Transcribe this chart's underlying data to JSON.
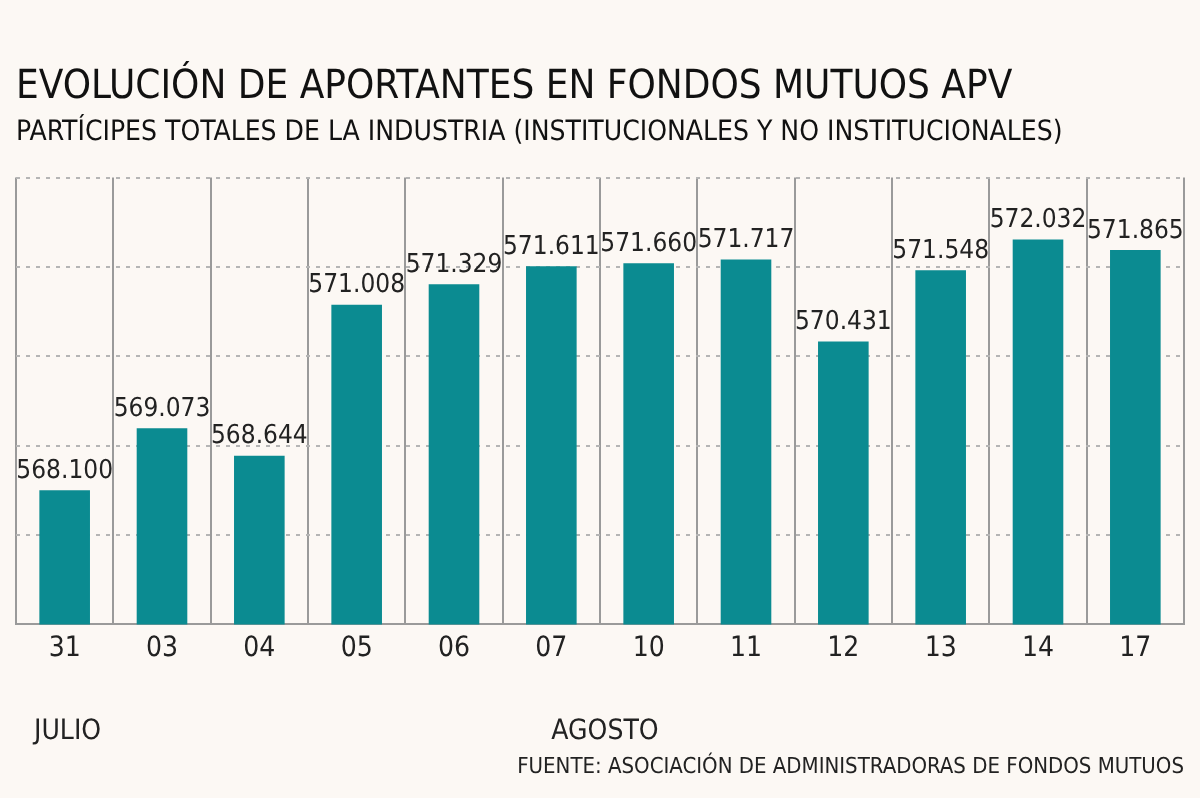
{
  "chart_data": {
    "type": "bar",
    "title": "EVOLUCIÓN DE APORTANTES EN FONDOS MUTUOS APV",
    "subtitle": "PARTÍCIPES TOTALES DE LA INDUSTRIA (INSTITUCIONALES Y NO INSTITUCIONALES)",
    "categories": [
      "31",
      "03",
      "04",
      "05",
      "06",
      "07",
      "10",
      "11",
      "12",
      "13",
      "14",
      "17"
    ],
    "values": [
      568100,
      569073,
      568644,
      571008,
      571329,
      571611,
      571660,
      571717,
      570431,
      571548,
      572032,
      571865
    ],
    "value_labels": [
      "568.100",
      "569.073",
      "568.644",
      "571.008",
      "571.329",
      "571.611",
      "571.660",
      "571.717",
      "570.431",
      "571.548",
      "572.032",
      "571.865"
    ],
    "color": "#0b8b91",
    "ylim": [
      566000,
      573000
    ],
    "yticks": [
      {
        "value": 566000,
        "label": null
      },
      {
        "value": 567400,
        "label": null
      },
      {
        "value": 568800,
        "label": null
      },
      {
        "value": 570200,
        "label": null
      },
      {
        "value": 571600,
        "label": null
      },
      {
        "value": 573000,
        "label": null
      }
    ],
    "tick_labels": "x",
    "grid": true,
    "legend": false,
    "annotations": [
      "JULIO",
      "AGOSTO",
      "FUENTE: ASOCIACIÓN DE ADMINISTRADORAS DE FONDOS MUTUOS"
    ]
  }
}
